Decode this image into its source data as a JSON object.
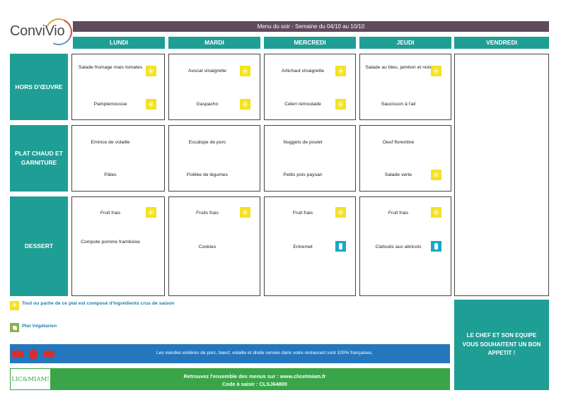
{
  "brand": {
    "logo_text": "ConviVio"
  },
  "title": "Menu du soir - Semaine du 04/10 au 10/10",
  "days": [
    "LUNDI",
    "MARDI",
    "MERCREDI",
    "JEUDI",
    "VENDREDI"
  ],
  "rows": [
    {
      "label": "HORS D'ŒUVRE"
    },
    {
      "label": "PLAT CHAUD ET GARNITURE"
    },
    {
      "label": "DESSERT"
    }
  ],
  "menu": {
    "lundi": {
      "hors_1": "Salade fromage mais tomates",
      "hors_2": "Pamplemousse",
      "plat_1": "Emince de volaille",
      "plat_2": "Pâtes",
      "dessert_1": "Fruit frais",
      "dessert_2": "Compote pomme framboise"
    },
    "mardi": {
      "hors_1": "Avocat vinaigrette",
      "hors_2": "Gaspacho",
      "plat_1": "Escalope de porc",
      "plat_2": "Poêlée de légumes",
      "dessert_1": "Fruits frais",
      "dessert_2": "Cookies"
    },
    "mercredi": {
      "hors_1": "Artichaut vinaigrette",
      "hors_2": "Céleri rémoulade",
      "plat_1": "Nuggets de poulet",
      "plat_2": "Petits pois paysan",
      "dessert_1": "Fruit frais",
      "dessert_2": "Entremet"
    },
    "jeudi": {
      "hors_1": "Salade au bleu, jambon et noix",
      "hors_2": "Saucisson à l'ail",
      "plat_1": "Oeuf florentine",
      "plat_2": "Salade verte",
      "dessert_1": "Fruit frais",
      "dessert_2": "Clafoutis aux abricots"
    }
  },
  "legend": {
    "seasonal": "Tout ou partie de ce plat est composé d'ingrédients crus de saison",
    "vegetarian": "Plat Végétarien"
  },
  "footer": {
    "meat_notice": "Les viandes entières de porc, bœuf, volaille et dinde servies dans votre restaurant sont 100% françaises.",
    "logo_text": "LIC&MIAM!",
    "menus_line": "Retrouvez l'ensemble des menus sur : www.clicetmiam.fr",
    "code_line": "Code à saisir : CLSJ64800"
  },
  "chef_message": "LE CHEF ET SON EQUIPE VOUS SOUHAITENT UN BON APPETIT !",
  "icons": {
    "seasonal": "sun-icon",
    "dessert_special": "bottle-icon",
    "vegetarian": "leaf-icon",
    "meat_origin": [
      "cow-icon",
      "chicken-icon",
      "pig-icon"
    ]
  },
  "colors": {
    "teal": "#1f9e95",
    "title_bar": "#5e4b5c",
    "seasonal_icon": "#f5e21b",
    "blue_band": "#2577bd",
    "green_band": "#39a548",
    "legend_text": "#1a7fb0"
  }
}
